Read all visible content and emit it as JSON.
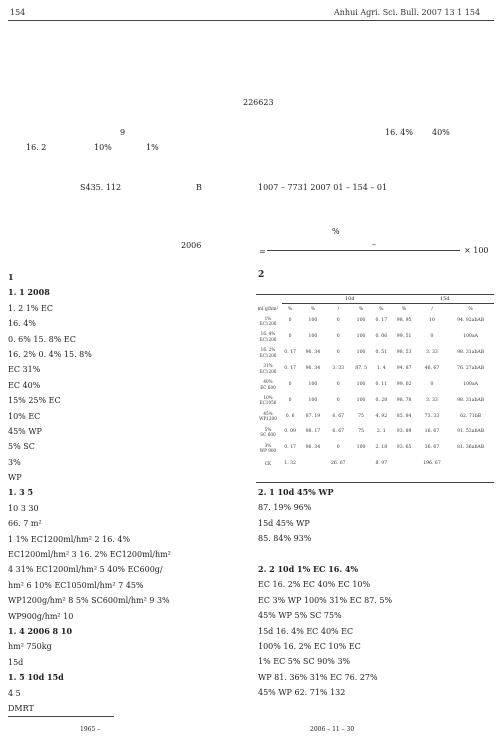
{
  "header": {
    "page_left": "154",
    "journal": "Anhui Agri. Sci. Bull. 2007  13  1    154"
  },
  "front": {
    "postcode": "226623",
    "abs_line1_num": "9",
    "abs_line1_mid": "16. 4%",
    "abs_line1_right": "40%",
    "abs_line2_a": "16. 2",
    "abs_line2_b": "10%",
    "abs_line2_c": "1%",
    "class_no": "S435. 112",
    "doc_code": "B",
    "issn": "1007 – 7731  2007  01 – 154 – 01",
    "year": "2006"
  },
  "left_col": [
    {
      "text": "1",
      "bold": true
    },
    {
      "text": "1. 1                              2008",
      "bold": true
    },
    {
      "text": "1. 2            1%                                                   EC",
      "bold": false
    },
    {
      "text": "                                                          16. 4%",
      "bold": false
    },
    {
      "text": "  0. 6%                  15. 8%                 EC",
      "bold": false
    },
    {
      "text": "                16. 2%                       0. 4%               15. 8%",
      "bold": false
    },
    {
      "text": "           EC                                                    31%",
      "bold": false
    },
    {
      "text": "      EC                                                         40%",
      "bold": false
    },
    {
      "text": "15%           25%           EC",
      "bold": false
    },
    {
      "text": "           10%                        EC",
      "bold": false
    },
    {
      "text": "                                          45%           WP",
      "bold": false
    },
    {
      "text": "                                          5%                        SC",
      "bold": false
    },
    {
      "text": "                                                          3%",
      "bold": false
    },
    {
      "text": "    WP",
      "bold": false
    },
    {
      "text": "1. 3                                                              5",
      "bold": true
    },
    {
      "text": "                  10                              3            30",
      "bold": false
    },
    {
      "text": "                   66. 7  m²",
      "bold": false
    },
    {
      "text": "     1   1%           EC1200ml/hm²     2   16. 4%",
      "bold": false
    },
    {
      "text": "EC1200ml/hm²      3   16. 2%                       EC1200ml/hm²",
      "bold": false
    },
    {
      "text": "   4   31%                  EC1200ml/hm²     5   40%       EC600g/",
      "bold": false
    },
    {
      "text": "hm²       6   10%                  EC1050ml/hm²     7   45%",
      "bold": false
    },
    {
      "text": "WP1200g/hm²     8   5%              SC600ml/hm²     9   3%",
      "bold": false
    },
    {
      "text": "WP900g/hm²       10",
      "bold": false
    },
    {
      "text": "1. 4                                  2006       8      10",
      "bold": true
    },
    {
      "text": "                                                   hm²                  750kg",
      "bold": false
    },
    {
      "text": "                                                   15d",
      "bold": false
    },
    {
      "text": "1. 5                                              10d  15d",
      "bold": true
    },
    {
      "text": "                          4                   5",
      "bold": false
    },
    {
      "text": "                                                                 DMRT",
      "bold": false
    }
  ],
  "formula": {
    "pct": "%",
    "dash": "–",
    "eq": "=",
    "times": "× 100"
  },
  "section2": "2",
  "table": {
    "group_10d": "10d",
    "group_15d": "15d",
    "units": [
      "ml  g/hm²",
      "%",
      "%",
      "/",
      "%",
      "%",
      "%",
      "/",
      "%"
    ],
    "rows": [
      [
        "1%\nEC1200",
        "0",
        "100",
        "0",
        "100",
        "0. 17",
        "98. 95",
        "10",
        "94. 92abAB"
      ],
      [
        "16. 4%\nEC1200",
        "0",
        "100",
        "0",
        "100",
        "0. 06",
        "99. 51",
        "0",
        "100aA"
      ],
      [
        "16. 2%\nEC1200",
        "0. 17",
        "96. 34",
        "0",
        "100",
        "0. 51",
        "98. 53",
        "3. 33",
        "98. 31abAB"
      ],
      [
        "31%\nEC1200",
        "0. 17",
        "96. 34",
        "3. 33",
        "87. 5",
        "1. 4",
        "94. 87",
        "46. 67",
        "76. 27abAB"
      ],
      [
        "40%\nEC 600",
        "0",
        "100",
        "0",
        "100",
        "0. 11",
        "99. 02",
        "0",
        "100aA"
      ],
      [
        "10%\nEC1050",
        "0",
        "100",
        "0",
        "100",
        "0. 28",
        "98. 78",
        "3. 33",
        "98. 31abAB"
      ],
      [
        "45%\nWP1200",
        "0. 6",
        "87. 19",
        "6. 67",
        "75",
        "4. 92",
        "85. 84",
        "73. 33",
        "62. 71bB"
      ],
      [
        "5%\nSC 600",
        "0. 09",
        "98. 17",
        "6. 67",
        "75",
        "2. 1",
        "93. 89",
        "16. 67",
        "91. 53abAB"
      ],
      [
        "3%\nWP 900",
        "0. 17",
        "96. 34",
        "0",
        "100",
        "2. 18",
        "93. 65",
        "36. 67",
        "81. 36abAB"
      ],
      [
        "CK",
        "1. 32",
        "",
        "26. 67",
        "",
        "8. 97",
        "",
        "196. 67",
        ""
      ]
    ]
  },
  "right_col": [
    {
      "text": "2. 1                                10d       45%                 WP",
      "bold": true
    },
    {
      "text": "   87. 19%                                                 96%",
      "bold": false
    },
    {
      "text": "                                      15d       45%                 WP",
      "bold": false
    },
    {
      "text": "85. 84%                                                 93%",
      "bold": false
    },
    {
      "text": "",
      "bold": false
    },
    {
      "text": "2. 2                                    10d  1%          EC  16. 4%",
      "bold": true
    },
    {
      "text": "    EC  16. 2%                         EC    40%            EC  10%",
      "bold": false
    },
    {
      "text": "EC  3%            WP          100%   31%               EC   87. 5%",
      "bold": false
    },
    {
      "text": "45%              WP      5%                SC               75%",
      "bold": false
    },
    {
      "text": "                          15d  16. 4%                    EC  40%          EC",
      "bold": false
    },
    {
      "text": "                    100%  16. 2%                     EC    10%              EC",
      "bold": false
    },
    {
      "text": "1%          EC  5%              SC                      90%            3%",
      "bold": false
    },
    {
      "text": "WP              81. 36%   31%                   EC              76. 27%",
      "bold": false
    },
    {
      "text": "45%              WP                       62. 71%                       132",
      "bold": false
    }
  ],
  "footnotes": {
    "left": "1965 –",
    "right": "2006 – 11 – 30"
  }
}
